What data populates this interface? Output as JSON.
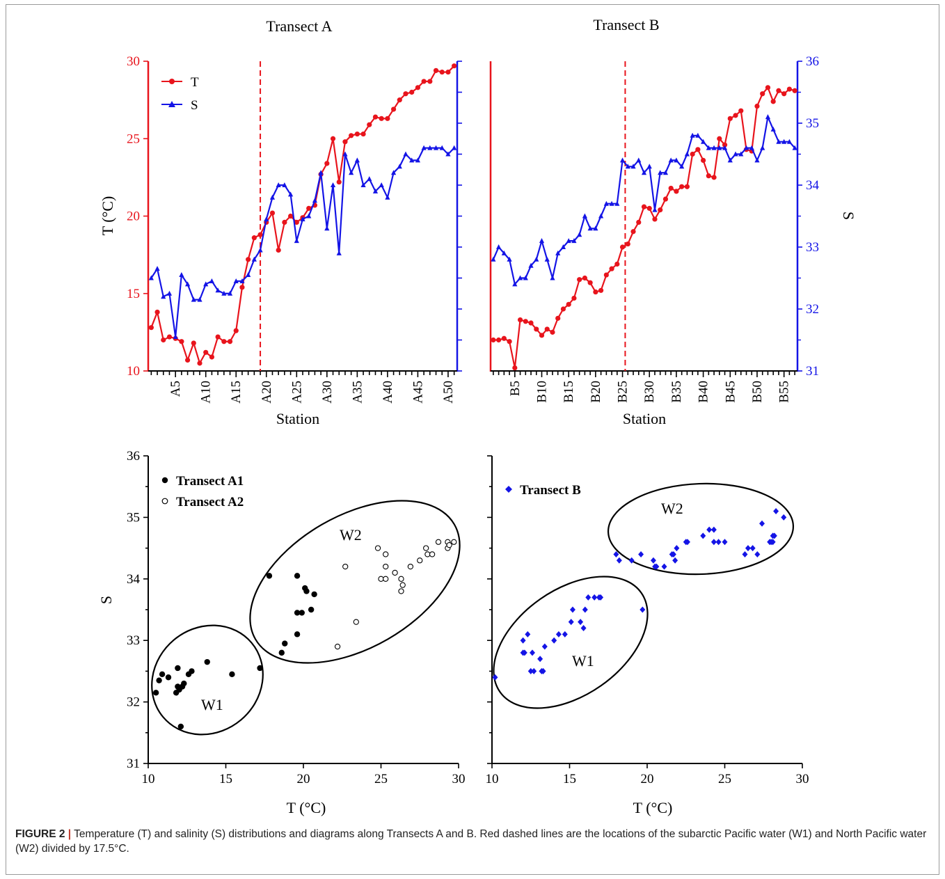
{
  "figure": {
    "caption_label": "FIGURE 2",
    "caption_separator": "|",
    "caption_text": "Temperature (T) and salinity (S) distributions and diagrams along Transects A and B. Red dashed lines are the locations of the subarctic Pacific water (W1) and North Pacific water (W2) divided by 17.5°C."
  },
  "colors": {
    "temperature": "#e8141c",
    "salinity": "#1414e6",
    "transectA": "#000000"
  },
  "chart_data": [
    {
      "type": "line",
      "title": "Transect A",
      "xlabel": "Station",
      "ylabel_left": "T (°C)",
      "ylabel_right": "",
      "x_tick_labels": [
        "A5",
        "A10",
        "A15",
        "A20",
        "A25",
        "A30",
        "A35",
        "A40",
        "A45",
        "A50"
      ],
      "x_tick_stations": [
        5,
        10,
        15,
        20,
        25,
        30,
        35,
        40,
        45,
        50
      ],
      "station_range": [
        0,
        51
      ],
      "ylim_left": [
        10,
        30
      ],
      "yticks_left": [
        "10",
        "15",
        "20",
        "25",
        "30"
      ],
      "ylim_right": [
        31,
        36
      ],
      "divider_station": 18.5,
      "legend": [
        "T",
        "S"
      ],
      "series": [
        {
          "name": "T",
          "axis": "left",
          "values": [
            12.8,
            13.8,
            12.0,
            12.2,
            12.1,
            11.9,
            10.7,
            11.8,
            10.5,
            11.2,
            10.9,
            12.2,
            11.9,
            11.9,
            12.6,
            15.4,
            17.2,
            18.6,
            18.8,
            19.6,
            20.2,
            17.8,
            19.6,
            20.0,
            19.6,
            19.9,
            20.5,
            20.7,
            22.7,
            23.4,
            25.0,
            22.2,
            24.8,
            25.2,
            25.3,
            25.3,
            25.9,
            26.4,
            26.3,
            26.3,
            26.9,
            27.5,
            27.9,
            28.0,
            28.3,
            28.7,
            28.7,
            29.4,
            29.3,
            29.3,
            29.7
          ]
        },
        {
          "name": "S",
          "axis": "right",
          "values": [
            32.5,
            32.65,
            32.2,
            32.25,
            31.55,
            32.55,
            32.4,
            32.15,
            32.15,
            32.4,
            32.45,
            32.3,
            32.25,
            32.25,
            32.45,
            32.45,
            32.55,
            32.8,
            32.95,
            33.45,
            33.8,
            34.0,
            34.0,
            33.85,
            33.1,
            33.45,
            33.5,
            33.75,
            34.2,
            33.3,
            34.0,
            32.9,
            34.5,
            34.2,
            34.4,
            34.0,
            34.1,
            33.9,
            34.0,
            33.8,
            34.2,
            34.3,
            34.5,
            34.4,
            34.4,
            34.6,
            34.6,
            34.6,
            34.6,
            34.5,
            34.6
          ]
        }
      ]
    },
    {
      "type": "line",
      "title": "Transect B",
      "xlabel": "Station",
      "ylabel_left": "",
      "ylabel_right": "S",
      "x_tick_labels": [
        "B5",
        "B10",
        "B15",
        "B20",
        "B25",
        "B30",
        "B35",
        "B40",
        "B45",
        "B50",
        "B55"
      ],
      "x_tick_stations": [
        5,
        10,
        15,
        20,
        25,
        30,
        35,
        40,
        45,
        50,
        55
      ],
      "station_range": [
        0,
        57
      ],
      "ylim_left": [
        10,
        30
      ],
      "ylim_right": [
        31,
        36
      ],
      "yticks_right": [
        "31",
        "32",
        "33",
        "34",
        "35",
        "36"
      ],
      "divider_station": 25,
      "series": [
        {
          "name": "T",
          "axis": "left",
          "values": [
            12.0,
            12.0,
            12.1,
            11.9,
            10.2,
            13.3,
            13.2,
            13.1,
            12.7,
            12.3,
            12.7,
            12.5,
            13.4,
            14.0,
            14.3,
            14.7,
            15.9,
            16.0,
            15.7,
            15.1,
            15.2,
            16.2,
            16.6,
            16.9,
            18.0,
            18.2,
            19.0,
            19.6,
            20.6,
            20.5,
            19.8,
            20.4,
            21.1,
            21.8,
            21.6,
            21.9,
            21.9,
            24.0,
            24.3,
            23.6,
            22.6,
            22.5,
            25.0,
            24.6,
            26.3,
            26.5,
            26.8,
            24.3,
            24.2,
            27.1,
            27.9,
            28.3,
            27.4,
            28.1,
            27.9,
            28.2,
            28.1
          ]
        },
        {
          "name": "S",
          "axis": "right",
          "values": [
            32.8,
            33.0,
            32.9,
            32.8,
            32.4,
            32.5,
            32.5,
            32.7,
            32.8,
            33.1,
            32.8,
            32.5,
            32.9,
            33.0,
            33.1,
            33.1,
            33.2,
            33.5,
            33.3,
            33.3,
            33.5,
            33.7,
            33.7,
            33.7,
            34.4,
            34.3,
            34.3,
            34.4,
            34.2,
            34.3,
            33.6,
            34.2,
            34.2,
            34.4,
            34.4,
            34.3,
            34.5,
            34.8,
            34.8,
            34.7,
            34.6,
            34.6,
            34.6,
            34.6,
            34.4,
            34.5,
            34.5,
            34.6,
            34.6,
            34.4,
            34.6,
            35.1,
            34.9,
            34.7,
            34.7,
            34.7,
            34.6
          ]
        }
      ]
    },
    {
      "type": "scatter",
      "xlabel": "T (°C)",
      "ylabel": "S",
      "xlim": [
        10,
        30
      ],
      "ylim": [
        31,
        36
      ],
      "xticks": [
        "10",
        "15",
        "20",
        "25",
        "30"
      ],
      "yticks": [
        "31",
        "32",
        "33",
        "34",
        "35",
        "36"
      ],
      "legend": [
        "Transect A1",
        "Transect A2"
      ],
      "ellipse_labels": [
        "W1",
        "W2"
      ],
      "series": [
        {
          "name": "Transect A1",
          "marker": "filled-circle",
          "points": [
            [
              10.5,
              32.15
            ],
            [
              10.7,
              32.35
            ],
            [
              10.9,
              32.45
            ],
            [
              11.3,
              32.4
            ],
            [
              11.9,
              32.55
            ],
            [
              11.9,
              32.25
            ],
            [
              11.8,
              32.15
            ],
            [
              12.0,
              32.2
            ],
            [
              12.2,
              32.25
            ],
            [
              12.3,
              32.3
            ],
            [
              12.6,
              32.45
            ],
            [
              12.8,
              32.5
            ],
            [
              13.8,
              32.65
            ],
            [
              12.1,
              31.6
            ],
            [
              15.4,
              32.45
            ],
            [
              17.2,
              32.55
            ],
            [
              17.8,
              34.05
            ],
            [
              18.6,
              32.8
            ],
            [
              18.8,
              32.95
            ],
            [
              19.6,
              33.45
            ],
            [
              19.6,
              33.1
            ],
            [
              19.9,
              33.45
            ],
            [
              19.6,
              34.05
            ],
            [
              20.1,
              33.85
            ],
            [
              20.2,
              33.8
            ],
            [
              20.5,
              33.5
            ],
            [
              20.7,
              33.75
            ]
          ]
        },
        {
          "name": "Transect A2",
          "marker": "open-circle",
          "points": [
            [
              22.2,
              32.9
            ],
            [
              22.7,
              34.2
            ],
            [
              23.4,
              33.3
            ],
            [
              24.8,
              34.5
            ],
            [
              25.0,
              34.0
            ],
            [
              25.3,
              34.0
            ],
            [
              25.3,
              34.2
            ],
            [
              25.3,
              34.4
            ],
            [
              25.9,
              34.1
            ],
            [
              26.3,
              34.0
            ],
            [
              26.3,
              33.8
            ],
            [
              26.4,
              33.9
            ],
            [
              26.9,
              34.2
            ],
            [
              27.5,
              34.3
            ],
            [
              27.9,
              34.5
            ],
            [
              28.0,
              34.4
            ],
            [
              28.3,
              34.4
            ],
            [
              28.7,
              34.6
            ],
            [
              29.3,
              34.6
            ],
            [
              29.3,
              34.5
            ],
            [
              29.7,
              34.6
            ],
            [
              29.4,
              34.55
            ]
          ]
        }
      ]
    },
    {
      "type": "scatter",
      "xlabel": "T (°C)",
      "xlim": [
        10,
        30
      ],
      "ylim": [
        31,
        36
      ],
      "xticks": [
        "10",
        "15",
        "20",
        "25",
        "30"
      ],
      "legend": [
        "Transect B"
      ],
      "ellipse_labels": [
        "W1",
        "W2"
      ],
      "series": [
        {
          "name": "Transect B",
          "marker": "diamond",
          "points": [
            [
              10.2,
              32.4
            ],
            [
              12.0,
              32.8
            ],
            [
              12.0,
              33.0
            ],
            [
              12.1,
              32.8
            ],
            [
              12.3,
              33.1
            ],
            [
              12.5,
              32.5
            ],
            [
              12.6,
              32.8
            ],
            [
              12.7,
              32.5
            ],
            [
              13.1,
              32.7
            ],
            [
              13.2,
              32.5
            ],
            [
              13.3,
              32.5
            ],
            [
              13.4,
              32.9
            ],
            [
              14.0,
              33.0
            ],
            [
              14.3,
              33.1
            ],
            [
              14.7,
              33.1
            ],
            [
              15.1,
              33.3
            ],
            [
              15.2,
              33.5
            ],
            [
              15.7,
              33.3
            ],
            [
              15.9,
              33.2
            ],
            [
              16.0,
              33.5
            ],
            [
              16.2,
              33.7
            ],
            [
              16.6,
              33.7
            ],
            [
              16.9,
              33.7
            ],
            [
              17.0,
              33.7
            ],
            [
              19.7,
              33.5
            ],
            [
              18.0,
              34.4
            ],
            [
              18.2,
              34.3
            ],
            [
              19.0,
              34.3
            ],
            [
              19.6,
              34.4
            ],
            [
              20.4,
              34.3
            ],
            [
              20.5,
              34.2
            ],
            [
              20.6,
              34.2
            ],
            [
              21.1,
              34.2
            ],
            [
              21.6,
              34.4
            ],
            [
              21.8,
              34.3
            ],
            [
              21.9,
              34.5
            ],
            [
              21.7,
              34.4
            ],
            [
              22.5,
              34.6
            ],
            [
              22.6,
              34.6
            ],
            [
              23.6,
              34.7
            ],
            [
              24.0,
              34.8
            ],
            [
              24.3,
              34.8
            ],
            [
              24.3,
              34.6
            ],
            [
              24.6,
              34.6
            ],
            [
              25.0,
              34.6
            ],
            [
              26.3,
              34.4
            ],
            [
              26.5,
              34.5
            ],
            [
              26.8,
              34.5
            ],
            [
              27.1,
              34.4
            ],
            [
              27.4,
              34.9
            ],
            [
              27.9,
              34.6
            ],
            [
              28.0,
              34.6
            ],
            [
              28.1,
              34.7
            ],
            [
              28.2,
              34.7
            ],
            [
              28.1,
              34.6
            ],
            [
              28.3,
              35.1
            ],
            [
              28.8,
              35.0
            ]
          ]
        }
      ]
    }
  ]
}
